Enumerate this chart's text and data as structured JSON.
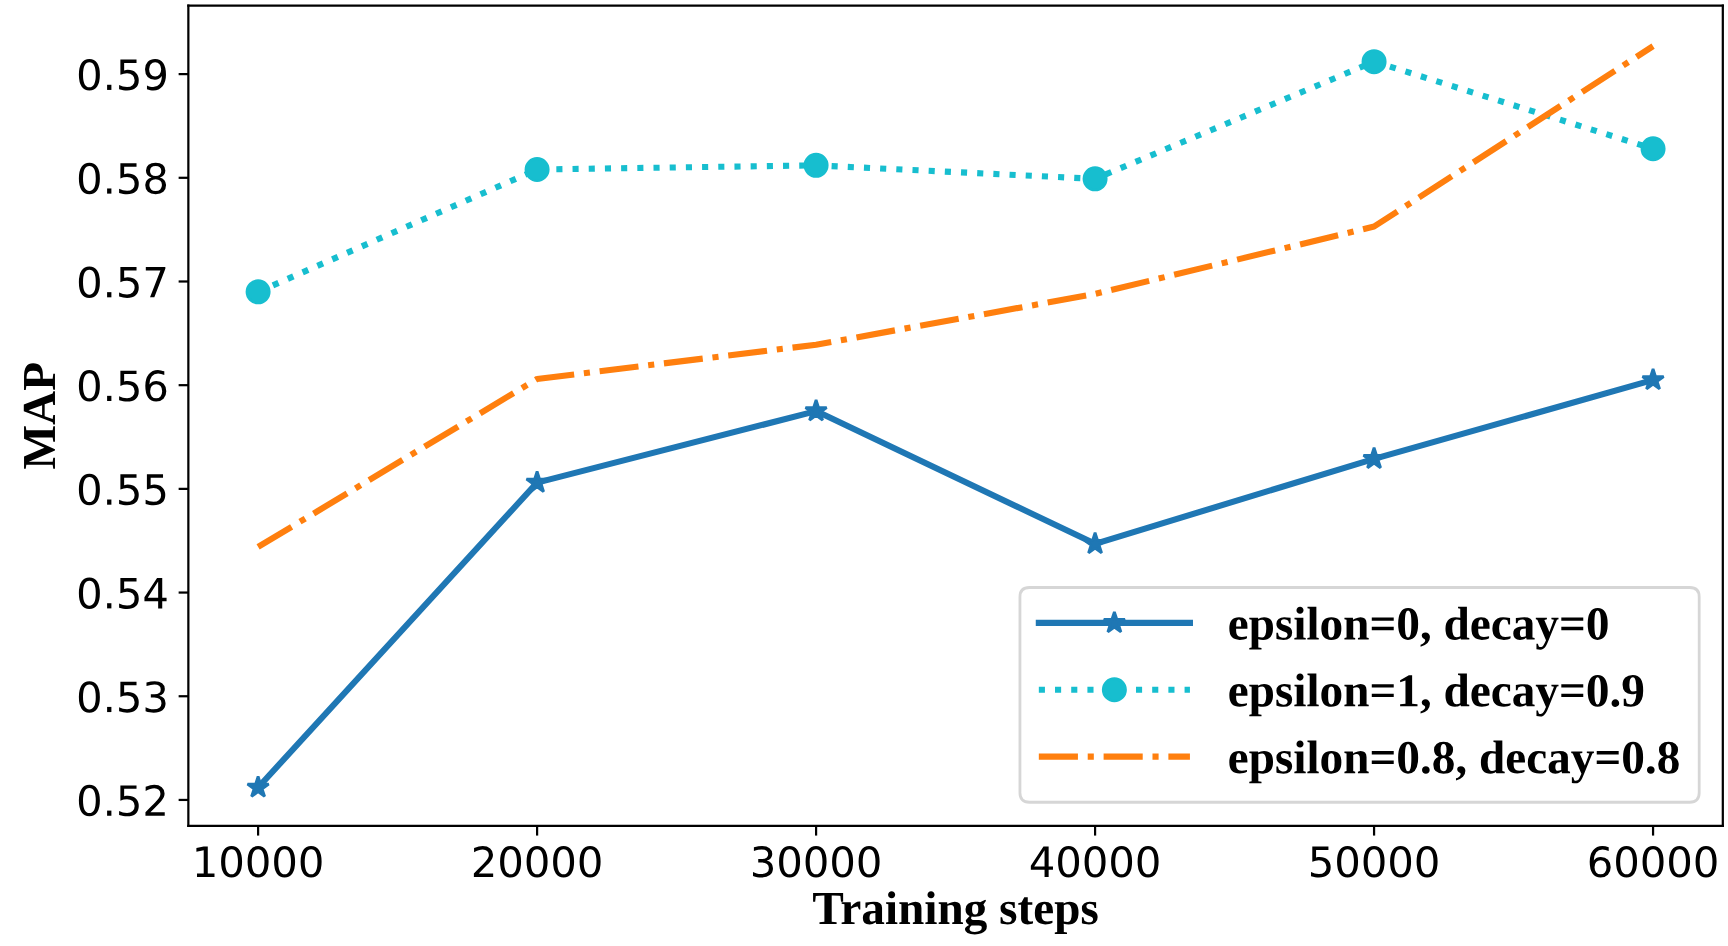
{
  "chart_data": {
    "type": "line",
    "xlabel": "Training steps",
    "ylabel": "MAP",
    "x": [
      10000,
      20000,
      30000,
      40000,
      50000,
      60000
    ],
    "xlim": [
      7500,
      62500
    ],
    "xticks": [
      10000,
      20000,
      30000,
      40000,
      50000,
      60000
    ],
    "ylim": [
      0.5175,
      0.5966
    ],
    "yticks": [
      0.52,
      0.53,
      0.54,
      0.55,
      0.56,
      0.57,
      0.58,
      0.59
    ],
    "grid": false,
    "legend": "bottom right",
    "series": [
      {
        "name": "epsilon=0, decay=0",
        "color": "#1f77b4",
        "marker": "star",
        "line_style": "solid",
        "values": [
          0.5212,
          0.5506,
          0.5575,
          0.5447,
          0.5529,
          0.5605
        ]
      },
      {
        "name": "epsilon=1, decay=0.9",
        "color": "#17becf",
        "marker": "circle",
        "line_style": "dotted",
        "values": [
          0.569,
          0.5808,
          0.5812,
          0.5799,
          0.5912,
          0.5828
        ]
      },
      {
        "name": "epsilon=0.8, decay=0.8",
        "color": "#ff7f0e",
        "marker": "none",
        "line_style": "dashdot",
        "values": [
          0.5444,
          0.5606,
          0.5639,
          0.5688,
          0.5753,
          0.5927
        ]
      }
    ]
  }
}
